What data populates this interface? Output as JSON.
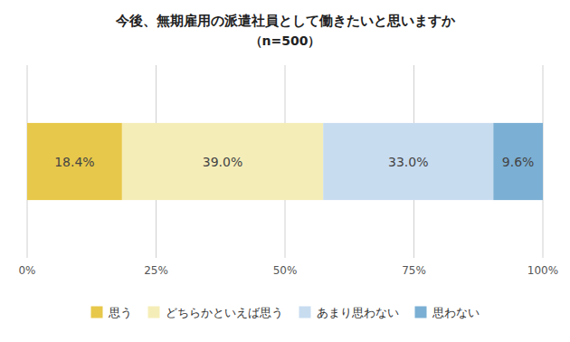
{
  "chart_data": {
    "type": "bar",
    "orientation": "horizontal",
    "stacked": true,
    "title": "今後、無期雇用の派遣社員として働きたいと思いますか",
    "subtitle": "（n=500）",
    "categories": [
      null
    ],
    "series": [
      {
        "name": "思う",
        "color": "#E8C84A",
        "values": [
          18.4
        ],
        "value_labels": [
          "18.4%"
        ]
      },
      {
        "name": "どちらかといえば思う",
        "color": "#F5EDB8",
        "values": [
          39.0
        ],
        "value_labels": [
          "39.0%"
        ]
      },
      {
        "name": "あまり思わない",
        "color": "#C8DCF0",
        "values": [
          33.0
        ],
        "value_labels": [
          "33.0%"
        ]
      },
      {
        "name": "思わない",
        "color": "#7BAFD4",
        "values": [
          9.6
        ],
        "value_labels": [
          "9.6%"
        ]
      }
    ],
    "xlim": [
      0,
      100
    ],
    "xticks": [
      {
        "value": 0,
        "label": "0%"
      },
      {
        "value": 25,
        "label": "25%"
      },
      {
        "value": 50,
        "label": "50%"
      },
      {
        "value": 75,
        "label": "75%"
      },
      {
        "value": 100,
        "label": "100%"
      }
    ],
    "grid": true,
    "data_labels": true,
    "tick_labels": "x",
    "legend": "bottom"
  }
}
